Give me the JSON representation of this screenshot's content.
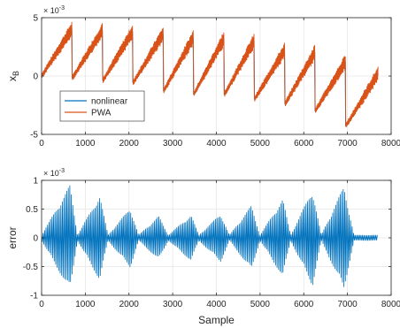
{
  "chart_data": [
    {
      "type": "line",
      "xlabel": "",
      "ylabel": "x",
      "ylabel_sub": "B",
      "xlim": [
        0,
        8000
      ],
      "ylim": [
        -5,
        5
      ],
      "y_exponent_label": "× 10",
      "y_exponent_power": "-3",
      "grid": true,
      "legend_position": "bottom-left",
      "xticks": [
        "0",
        "1000",
        "2000",
        "3000",
        "4000",
        "5000",
        "6000",
        "7000",
        "8000"
      ],
      "yticks": [
        "-5",
        "0",
        "5"
      ],
      "segments": [
        {
          "x0": 0,
          "x1": 690,
          "y0": 0.0,
          "y1": 4.0
        },
        {
          "x0": 700,
          "x1": 1390,
          "y0": -0.2,
          "y1": 3.9
        },
        {
          "x0": 1400,
          "x1": 2080,
          "y0": -0.4,
          "y1": 3.8
        },
        {
          "x0": 2090,
          "x1": 2780,
          "y0": -0.6,
          "y1": 3.6
        },
        {
          "x0": 2790,
          "x1": 3470,
          "y0": -1.3,
          "y1": 3.3
        },
        {
          "x0": 3480,
          "x1": 4170,
          "y0": -1.6,
          "y1": 3.2
        },
        {
          "x0": 4180,
          "x1": 4860,
          "y0": -1.6,
          "y1": 3.0
        },
        {
          "x0": 4870,
          "x1": 5560,
          "y0": -2.0,
          "y1": 2.2
        },
        {
          "x0": 5570,
          "x1": 6250,
          "y0": -2.4,
          "y1": 2.0
        },
        {
          "x0": 6260,
          "x1": 6950,
          "y0": -3.0,
          "y1": 1.2
        },
        {
          "x0": 6960,
          "x1": 7700,
          "y0": -4.3,
          "y1": 0.2
        }
      ],
      "series": [
        {
          "name": "nonlinear",
          "color": "#0072BD"
        },
        {
          "name": "PWA",
          "color": "#D95319"
        }
      ]
    },
    {
      "type": "line",
      "xlabel": "Sample",
      "ylabel": "error",
      "xlim": [
        0,
        8000
      ],
      "ylim": [
        -1,
        1
      ],
      "y_exponent_label": "× 10",
      "y_exponent_power": "-3",
      "grid": true,
      "xticks": [
        "0",
        "1000",
        "2000",
        "3000",
        "4000",
        "5000",
        "6000",
        "7000",
        "8000"
      ],
      "yticks": [
        "-1",
        "-0.5",
        "0",
        "0.5",
        "1"
      ],
      "envelope_peaks": [
        {
          "x": 0,
          "amp": 0.05
        },
        {
          "x": 650,
          "amp": 0.92
        },
        {
          "x": 820,
          "amp": 0.05
        },
        {
          "x": 1330,
          "amp": 0.74
        },
        {
          "x": 1520,
          "amp": 0.05
        },
        {
          "x": 2030,
          "amp": 0.52
        },
        {
          "x": 2220,
          "amp": 0.05
        },
        {
          "x": 2680,
          "amp": 0.38
        },
        {
          "x": 2900,
          "amp": 0.05
        },
        {
          "x": 3420,
          "amp": 0.4
        },
        {
          "x": 3600,
          "amp": 0.05
        },
        {
          "x": 4100,
          "amp": 0.42
        },
        {
          "x": 4300,
          "amp": 0.05
        },
        {
          "x": 4800,
          "amp": 0.56
        },
        {
          "x": 5000,
          "amp": 0.05
        },
        {
          "x": 5520,
          "amp": 0.68
        },
        {
          "x": 5700,
          "amp": 0.05
        },
        {
          "x": 6200,
          "amp": 0.84
        },
        {
          "x": 6400,
          "amp": 0.05
        },
        {
          "x": 6920,
          "amp": 0.9
        },
        {
          "x": 7150,
          "amp": 0.05
        },
        {
          "x": 7700,
          "amp": 0.05
        }
      ],
      "series": [
        {
          "name": "",
          "color": "#0072BD"
        }
      ]
    }
  ]
}
